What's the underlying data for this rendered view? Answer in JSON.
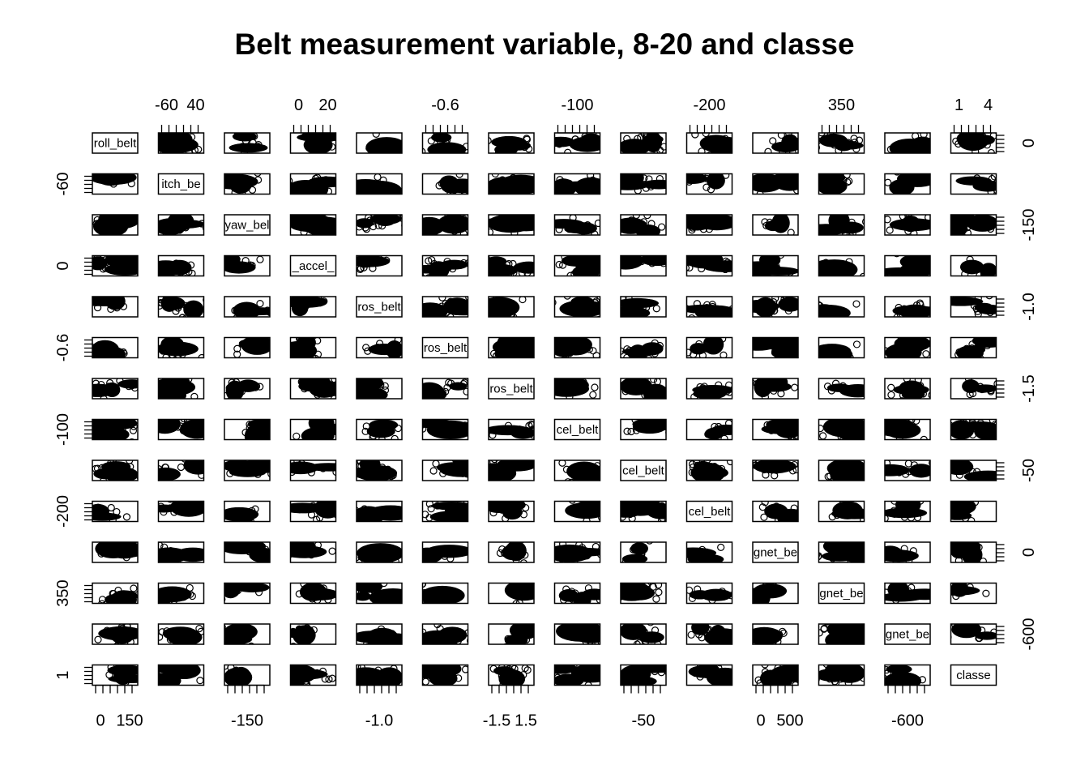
{
  "chart_data": {
    "type": "scatter",
    "subtype": "scatterplot-matrix",
    "title": "Belt measurement variable, 8-20 and classe",
    "variables": [
      {
        "label": "roll_belt"
      },
      {
        "label": "itch_be"
      },
      {
        "label": "yaw_bel"
      },
      {
        "label": "_accel_"
      },
      {
        "label": "ros_belt"
      },
      {
        "label": "ros_belt"
      },
      {
        "label": "ros_belt"
      },
      {
        "label": "cel_belt"
      },
      {
        "label": "cel_belt"
      },
      {
        "label": "cel_belt"
      },
      {
        "label": "gnet_be"
      },
      {
        "label": "gnet_be"
      },
      {
        "label": "gnet_be"
      },
      {
        "label": "classe"
      }
    ],
    "axes": {
      "top": [
        {
          "col": 1,
          "ticks": [
            "-60",
            "40"
          ]
        },
        {
          "col": 3,
          "ticks": [
            "0",
            "20"
          ]
        },
        {
          "col": 5,
          "ticks": [
            "-0.6"
          ]
        },
        {
          "col": 7,
          "ticks": [
            "-100"
          ]
        },
        {
          "col": 9,
          "ticks": [
            "-200"
          ]
        },
        {
          "col": 11,
          "ticks": [
            "350"
          ]
        },
        {
          "col": 13,
          "ticks": [
            "1",
            "4"
          ]
        }
      ],
      "bottom": [
        {
          "col": 0,
          "ticks": [
            "0",
            "150"
          ]
        },
        {
          "col": 2,
          "ticks": [
            "-150"
          ]
        },
        {
          "col": 4,
          "ticks": [
            "-1.0"
          ]
        },
        {
          "col": 6,
          "ticks": [
            "-1.5",
            "1.5"
          ]
        },
        {
          "col": 8,
          "ticks": [
            "-50"
          ]
        },
        {
          "col": 10,
          "ticks": [
            "0",
            "500"
          ]
        },
        {
          "col": 12,
          "ticks": [
            "-600"
          ]
        }
      ],
      "left": [
        {
          "row": 1,
          "ticks": [
            "-60"
          ]
        },
        {
          "row": 3,
          "ticks": [
            "0"
          ]
        },
        {
          "row": 5,
          "ticks": [
            "-0.6"
          ]
        },
        {
          "row": 7,
          "ticks": [
            "-100"
          ]
        },
        {
          "row": 9,
          "ticks": [
            "-200"
          ]
        },
        {
          "row": 11,
          "ticks": [
            "350"
          ]
        },
        {
          "row": 13,
          "ticks": [
            "1"
          ]
        }
      ],
      "right": [
        {
          "row": 0,
          "ticks": [
            "0"
          ]
        },
        {
          "row": 2,
          "ticks": [
            "-150"
          ]
        },
        {
          "row": 4,
          "ticks": [
            "-1.0"
          ]
        },
        {
          "row": 6,
          "ticks": [
            "-1.5"
          ]
        },
        {
          "row": 8,
          "ticks": [
            "-50"
          ]
        },
        {
          "row": 10,
          "ticks": [
            "0"
          ]
        },
        {
          "row": 12,
          "ticks": [
            "-600"
          ]
        }
      ]
    },
    "grid": false,
    "legend": "none",
    "marker": "open-circle",
    "colors": {
      "points": "#000000",
      "background": "#ffffff"
    }
  }
}
